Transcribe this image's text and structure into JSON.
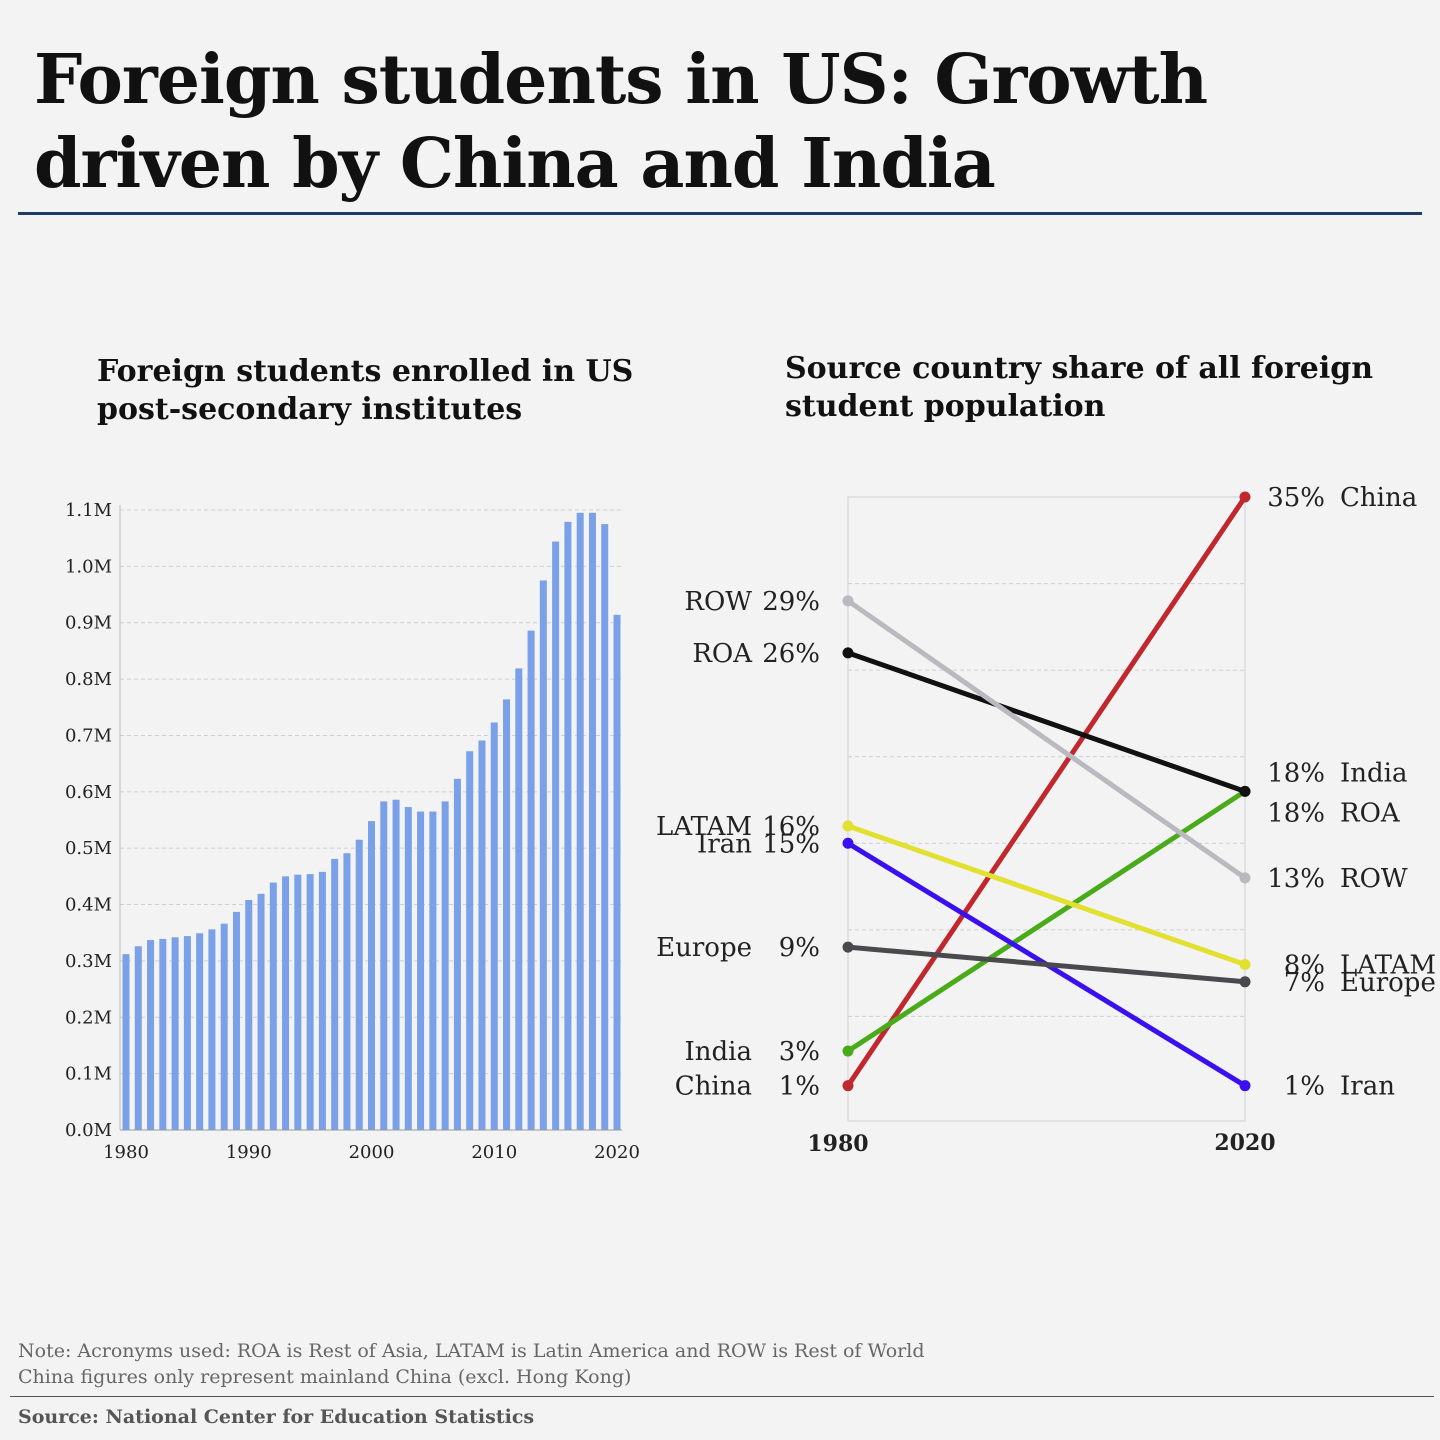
{
  "title": "Foreign students in US: Growth driven by China and India",
  "charts": {
    "bar_title": "Foreign students enrolled in US post-secondary institutes",
    "slope_title": "Source country share of all foreign student population"
  },
  "notes": {
    "line1": "Note: Acronyms used: ROA is Rest of Asia, LATAM is Latin America and ROW is Rest of World",
    "line2": "China figures only represent mainland China (excl. Hong Kong)",
    "source": "Source: National Center for Education Statistics"
  },
  "colors": {
    "bar": "#7aa0e8",
    "rule": "#1d3c66"
  },
  "chart_data": [
    {
      "type": "bar",
      "title": "Foreign students enrolled in US post-secondary institutes",
      "x": [
        1980,
        1981,
        1982,
        1983,
        1984,
        1985,
        1986,
        1987,
        1988,
        1989,
        1990,
        1991,
        1992,
        1993,
        1994,
        1995,
        1996,
        1997,
        1998,
        1999,
        2000,
        2001,
        2002,
        2003,
        2004,
        2005,
        2006,
        2007,
        2008,
        2009,
        2010,
        2011,
        2012,
        2013,
        2014,
        2015,
        2016,
        2017,
        2018,
        2019,
        2020
      ],
      "values": [
        0.312,
        0.326,
        0.337,
        0.339,
        0.342,
        0.344,
        0.349,
        0.356,
        0.366,
        0.387,
        0.408,
        0.419,
        0.439,
        0.45,
        0.453,
        0.454,
        0.458,
        0.481,
        0.491,
        0.515,
        0.548,
        0.583,
        0.586,
        0.573,
        0.565,
        0.565,
        0.583,
        0.623,
        0.672,
        0.691,
        0.723,
        0.764,
        0.819,
        0.886,
        0.975,
        1.044,
        1.079,
        1.095,
        1.095,
        1.075,
        0.914
      ],
      "unit": "M",
      "ylim": [
        0,
        1.1
      ],
      "yticks": [
        "0.0M",
        "0.1M",
        "0.2M",
        "0.3M",
        "0.4M",
        "0.5M",
        "0.6M",
        "0.7M",
        "0.8M",
        "0.9M",
        "1.0M",
        "1.1M"
      ],
      "xticks": [
        "1980",
        "1990",
        "2000",
        "2010",
        "2020"
      ],
      "grid": true
    },
    {
      "type": "line",
      "title": "Source country share of all foreign student population",
      "x": [
        "1980",
        "2020"
      ],
      "ylim": [
        0,
        35
      ],
      "grid": true,
      "series": [
        {
          "name": "China",
          "values": [
            1,
            35
          ],
          "start_label": "1%",
          "end_label": "35%",
          "color": "#c0282e"
        },
        {
          "name": "India",
          "values": [
            3,
            18
          ],
          "start_label": "3%",
          "end_label": "18%",
          "color": "#4aab1a"
        },
        {
          "name": "ROA",
          "values": [
            26,
            18
          ],
          "start_label": "26%",
          "end_label": "18%",
          "color": "#111111"
        },
        {
          "name": "ROW",
          "values": [
            29,
            13
          ],
          "start_label": "29%",
          "end_label": "13%",
          "color": "#b9b9bf"
        },
        {
          "name": "LATAM",
          "values": [
            16,
            8
          ],
          "start_label": "16%",
          "end_label": "8%",
          "color": "#e2e030"
        },
        {
          "name": "Iran",
          "values": [
            15,
            1
          ],
          "start_label": "15%",
          "end_label": "1%",
          "color": "#3a10f0"
        },
        {
          "name": "Europe",
          "values": [
            9,
            7
          ],
          "start_label": "9%",
          "end_label": "7%",
          "color": "#4a4a4e"
        }
      ]
    }
  ]
}
